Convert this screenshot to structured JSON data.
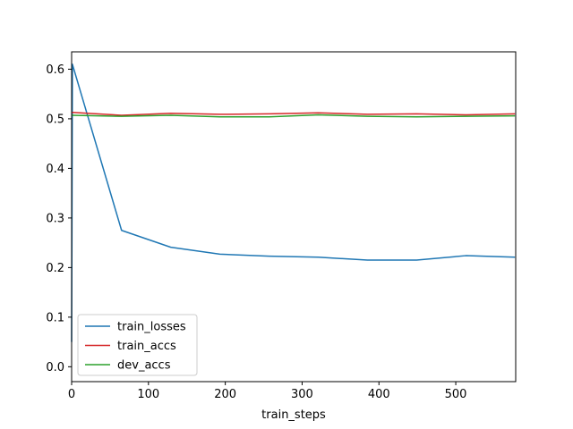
{
  "chart_data": {
    "type": "line",
    "title": "",
    "xlabel": "train_steps",
    "ylabel": "",
    "xlim": [
      0,
      578
    ],
    "ylim": [
      -0.03,
      0.635
    ],
    "xticks": [
      0,
      100,
      200,
      300,
      400,
      500
    ],
    "yticks": [
      0.0,
      0.1,
      0.2,
      0.3,
      0.4,
      0.5,
      0.6
    ],
    "xtick_labels": [
      "0",
      "100",
      "200",
      "300",
      "400",
      "500"
    ],
    "ytick_labels": [
      "0.0",
      "0.1",
      "0.2",
      "0.3",
      "0.4",
      "0.5",
      "0.6"
    ],
    "grid": false,
    "legend_position": "lower-left",
    "series": [
      {
        "name": "train_losses",
        "color": "#1f77b4",
        "x": [
          0,
          1,
          65,
          129,
          193,
          257,
          321,
          385,
          449,
          513,
          577
        ],
        "y": [
          0.05,
          0.61,
          0.275,
          0.241,
          0.227,
          0.223,
          0.221,
          0.215,
          0.215,
          0.224,
          0.221
        ]
      },
      {
        "name": "train_accs",
        "color": "#d62728",
        "x": [
          0,
          1,
          65,
          129,
          193,
          257,
          321,
          385,
          449,
          513,
          577
        ],
        "y": [
          0.513,
          0.513,
          0.507,
          0.511,
          0.509,
          0.51,
          0.512,
          0.509,
          0.51,
          0.508,
          0.51
        ]
      },
      {
        "name": "dev_accs",
        "color": "#2ca02c",
        "x": [
          0,
          1,
          65,
          129,
          193,
          257,
          321,
          385,
          449,
          513,
          577
        ],
        "y": [
          0.507,
          0.507,
          0.505,
          0.507,
          0.504,
          0.504,
          0.508,
          0.505,
          0.504,
          0.505,
          0.506
        ]
      }
    ]
  }
}
